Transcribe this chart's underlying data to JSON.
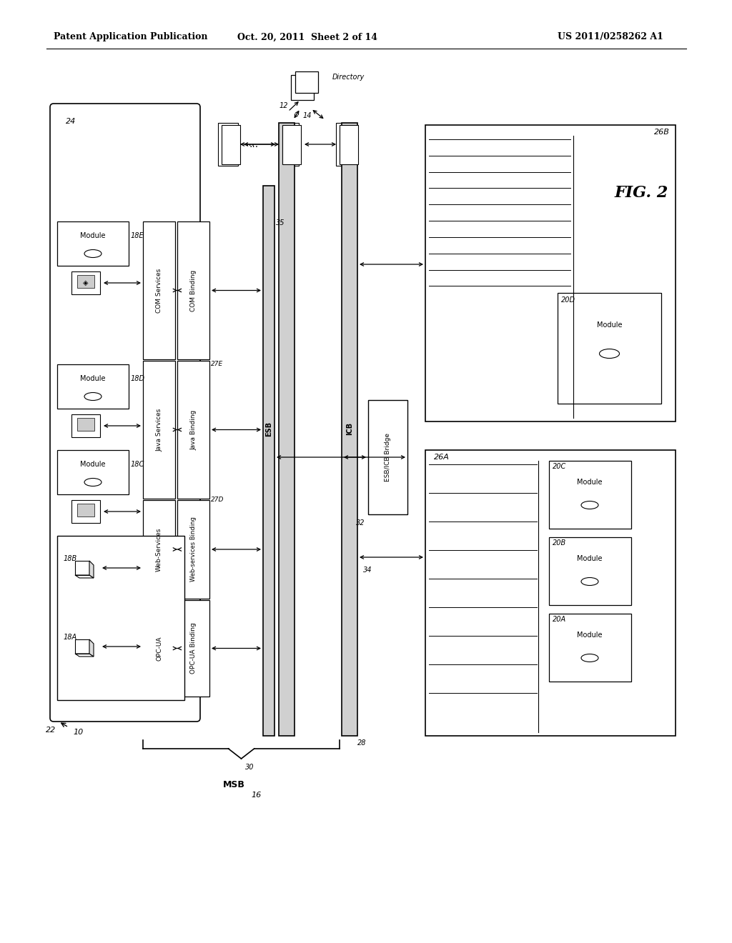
{
  "title_left": "Patent Application Publication",
  "title_center": "Oct. 20, 2011  Sheet 2 of 14",
  "title_right": "US 2011/0258262 A1",
  "fig_label": "FIG. 2",
  "bg_color": "#ffffff",
  "line_color": "#000000"
}
